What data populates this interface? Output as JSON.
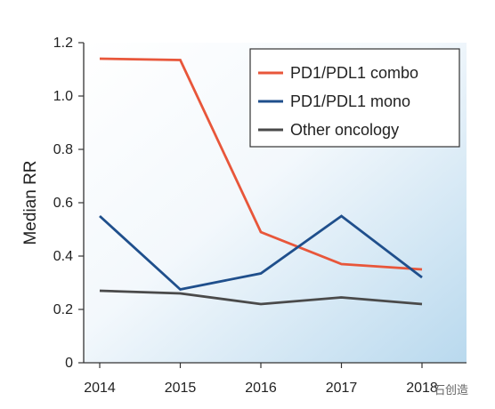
{
  "chart_data": {
    "type": "line",
    "title": "",
    "xlabel": "",
    "ylabel": "Median RR",
    "x": [
      "2014",
      "2015",
      "2016",
      "2017",
      "2018"
    ],
    "ylim": [
      0,
      1.2
    ],
    "yticks": [
      "0",
      "0.2",
      "0.4",
      "0.6",
      "0.8",
      "1.0",
      "1.2"
    ],
    "grid": false,
    "legend_position": "top-right",
    "series": [
      {
        "name": "PD1/PDL1 combo",
        "color": "#e8563a",
        "values": [
          1.14,
          1.135,
          0.49,
          0.37,
          0.35
        ]
      },
      {
        "name": "PD1/PDL1 mono",
        "color": "#1f4f8c",
        "values": [
          0.55,
          0.275,
          0.335,
          0.55,
          0.32
        ]
      },
      {
        "name": "Other oncology",
        "color": "#4a4a4a",
        "values": [
          0.27,
          0.26,
          0.22,
          0.245,
          0.22
        ]
      }
    ]
  },
  "watermark": {
    "text": "石创造"
  }
}
